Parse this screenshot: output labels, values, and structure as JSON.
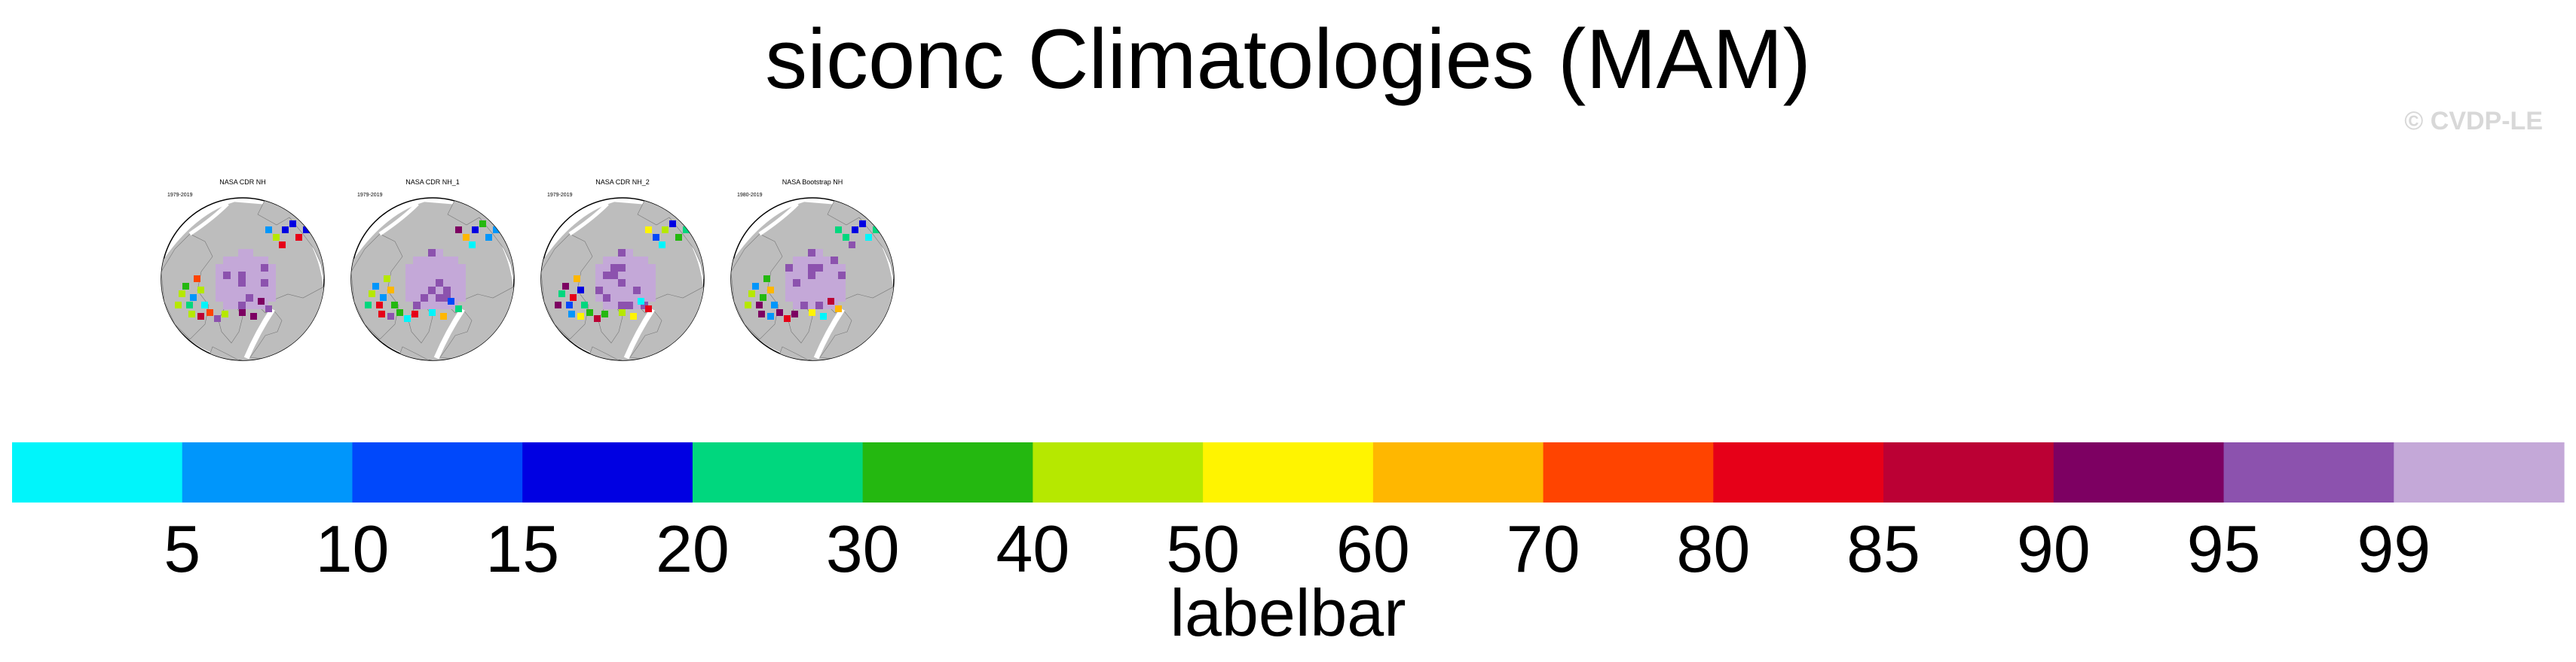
{
  "title": "siconc Climatologies (MAM)",
  "watermark": "© CVDP-LE",
  "panels": [
    {
      "title": "NASA CDR NH",
      "years": "1979-2019"
    },
    {
      "title": "NASA CDR NH_1",
      "years": "1979-2019"
    },
    {
      "title": "NASA CDR NH_2",
      "years": "1979-2019"
    },
    {
      "title": "NASA Bootstrap NH",
      "years": "1980-2019"
    }
  ],
  "chart_data": {
    "type": "heatmap",
    "title": "siconc Climatologies (MAM)",
    "colorbar": {
      "label": "labelbar",
      "tick_labels": [
        "5",
        "10",
        "15",
        "20",
        "30",
        "40",
        "50",
        "60",
        "70",
        "80",
        "85",
        "90",
        "95",
        "99"
      ],
      "colors": [
        "#00f5fb",
        "#0096fb",
        "#0048fb",
        "#0000e2",
        "#00d77e",
        "#24b810",
        "#b6e800",
        "#fff400",
        "#ffb700",
        "#ff4400",
        "#e60018",
        "#bb0034",
        "#7d0062",
        "#8c52ae",
        "#c4a8d8"
      ]
    },
    "map_colors": {
      "land": "#bdbdbd",
      "ocean": "#ffffff"
    }
  }
}
